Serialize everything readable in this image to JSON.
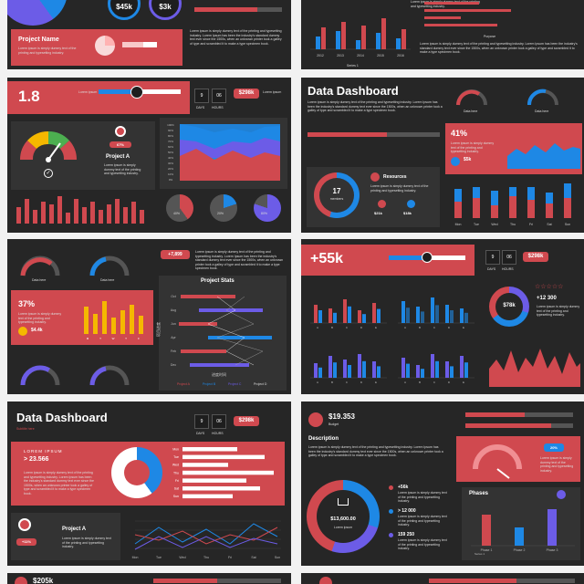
{
  "colors": {
    "accent": "#d0494f",
    "blue": "#1e88e5",
    "purple": "#6c5ce7",
    "yellow": "#f5b800",
    "green": "#4caf50",
    "dark": "#262626",
    "panel": "#333333"
  },
  "s1": {
    "stat1": "$45k",
    "stat2": "$3k",
    "project_title": "Project Name"
  },
  "s2": {
    "years": [
      "2012",
      "2013",
      "2014",
      "2015",
      "2016"
    ],
    "legend": "Series 1",
    "legend_b": "Purpose"
  },
  "s3": {
    "big": "1.8",
    "days_num": "9",
    "hours_num": "06",
    "days": "DAYS",
    "hours": "HOURS",
    "money": "$298k",
    "lorem": "Lorem ipsum",
    "project": "Project A",
    "gauge_pct": "67%",
    "pct_labels": [
      "40%",
      "20%",
      "80%"
    ],
    "area_y": [
      "100%",
      "90%",
      "80%",
      "70%",
      "60%",
      "50%",
      "40%",
      "30%",
      "20%",
      "10%",
      "0%"
    ],
    "bars": [
      6,
      9,
      5,
      8,
      7,
      10,
      4,
      9,
      6,
      8,
      5,
      7,
      9,
      6,
      8,
      5
    ]
  },
  "s4": {
    "title": "Data Dashboard",
    "gauge1": "Data here",
    "gauge2": "Data here",
    "pct": "41%",
    "small_money": "$5k",
    "resources": "Resources",
    "members_num": "17",
    "members": "members",
    "r1": "$21k",
    "r2": "$18k",
    "bar_cats": [
      "Mon",
      "Tue",
      "Wed",
      "Thu",
      "Fri",
      "Sat",
      "Sun"
    ]
  },
  "s5": {
    "badge": "+7,899",
    "g1": "Data here",
    "g2": "Data here",
    "pct": "37%",
    "money": "$4.4k",
    "stats_title": "Project Stats",
    "months": [
      "M",
      "T",
      "W",
      "T",
      "F"
    ],
    "ylabels": [
      "Oct",
      "Aug",
      "Jun",
      "Apr",
      "Feb",
      "Dec"
    ],
    "legend": [
      "Project A",
      "Project B",
      "Project C",
      "Project D"
    ],
    "y_axis_title": "项目进度",
    "x_axis_title": "进度时间"
  },
  "s6": {
    "big": "+55k",
    "days_num": "9",
    "hours_num": "06",
    "days": "DAYS",
    "hours": "HOURS",
    "money": "$298k",
    "donut": "$78k",
    "stat": "+12 300",
    "stars": "☆☆☆☆☆",
    "bar_x": [
      "A",
      "B",
      "C",
      "D",
      "E"
    ]
  },
  "s7": {
    "title": "Data Dashboard",
    "sub": "Subtitle here",
    "days_num": "9",
    "hours_num": "06",
    "days": "DAYS",
    "hours": "HOURS",
    "money": "$298k",
    "lorem": "LOREM IPSUM",
    "stat": "> 23.566",
    "project": "Project A",
    "badge": "+11%",
    "bar_labels": [
      "Mon",
      "Tue",
      "Wed",
      "Thu",
      "Fri",
      "Sat",
      "Sun"
    ],
    "line_x": [
      "Mon",
      "Tue",
      "Wed",
      "Thu",
      "Fri",
      "Sat",
      "Sun"
    ]
  },
  "s8": {
    "amount": "$19.353",
    "amount_lbl": "Budget",
    "description": "Description",
    "donut": "$13,600.00",
    "donut_sub": "Lorem ipsum",
    "s1": "+56k",
    "s2": "> 12 000",
    "s3": "159 250",
    "badge": "20%",
    "phases": "Phases",
    "phase_x": [
      "Phase 1",
      "Phase 2",
      "Phase 3"
    ],
    "phase_legend": "Series 1"
  },
  "s9": {
    "amount": "$205k"
  },
  "lorem_long": "Lorem ipsum is simply dummy text of the printing and typesetting industry. Lorem Ipsum has been the industry's standard dummy text ever since the 1500s, when an unknown printer took a galley of type and scrambled it to make a type specimen book.",
  "lorem_short": "Lorem ipsum is simply dummy text of the printing and typesetting industry."
}
